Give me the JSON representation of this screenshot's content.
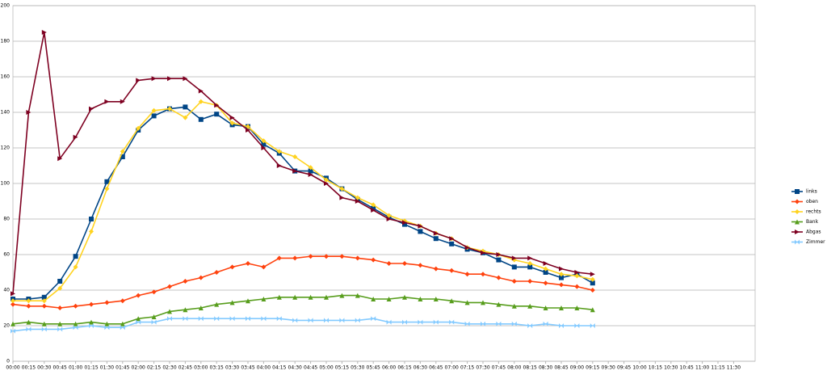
{
  "chart_data": {
    "type": "line",
    "categories": [
      "00:00",
      "00:15",
      "00:30",
      "00:45",
      "01:00",
      "01:15",
      "01:30",
      "01:45",
      "02:00",
      "02:15",
      "02:30",
      "02:45",
      "03:00",
      "03:15",
      "03:30",
      "03:45",
      "04:00",
      "04:15",
      "04:30",
      "04:45",
      "05:00",
      "05:15",
      "05:30",
      "05:45",
      "06:00",
      "06:15",
      "06:30",
      "06:45",
      "07:00",
      "07:15",
      "07:30",
      "07:45",
      "08:00",
      "08:15",
      "08:30",
      "08:45",
      "09:00",
      "09:15",
      "09:30",
      "09:45",
      "10:00",
      "10:15",
      "10:30",
      "10:45",
      "11:00",
      "11:15",
      "11:30"
    ],
    "ylim": [
      0,
      200
    ],
    "yticks": [
      0,
      20,
      40,
      60,
      80,
      100,
      120,
      140,
      160,
      180,
      200
    ],
    "grid": true,
    "legend": "right",
    "series": [
      {
        "name": "links",
        "color": "#004586",
        "marker": "square",
        "values": [
          35,
          35,
          36,
          45,
          59,
          80,
          101,
          115,
          130,
          138,
          142,
          143,
          136,
          139,
          133,
          132,
          122,
          117,
          107,
          107,
          103,
          97,
          91,
          86,
          81,
          77,
          73,
          69,
          66,
          63,
          61,
          57,
          53,
          53,
          50,
          47,
          49,
          44,
          null,
          null,
          null,
          null,
          null,
          null,
          null,
          null,
          null
        ]
      },
      {
        "name": "oben",
        "color": "#ff420e",
        "marker": "diamond",
        "values": [
          32,
          31,
          31,
          30,
          31,
          32,
          33,
          34,
          37,
          39,
          42,
          45,
          47,
          50,
          53,
          55,
          53,
          58,
          58,
          59,
          59,
          59,
          58,
          57,
          55,
          55,
          54,
          52,
          51,
          49,
          49,
          47,
          45,
          45,
          44,
          43,
          42,
          40,
          null,
          null,
          null,
          null,
          null,
          null,
          null,
          null,
          null
        ]
      },
      {
        "name": "rechts",
        "color": "#ffd320",
        "marker": "diamond",
        "values": [
          34,
          34,
          34,
          41,
          53,
          73,
          97,
          118,
          131,
          141,
          142,
          137,
          146,
          144,
          134,
          132,
          124,
          118,
          115,
          109,
          102,
          97,
          92,
          88,
          82,
          79,
          76,
          72,
          69,
          64,
          62,
          60,
          57,
          55,
          52,
          49,
          48,
          46,
          null,
          null,
          null,
          null,
          null,
          null,
          null,
          null,
          null
        ]
      },
      {
        "name": "Bank",
        "color": "#579d1c",
        "marker": "triangle",
        "values": [
          21,
          22,
          21,
          21,
          21,
          22,
          21,
          21,
          24,
          25,
          28,
          29,
          30,
          32,
          33,
          34,
          35,
          36,
          36,
          36,
          36,
          37,
          37,
          35,
          35,
          36,
          35,
          35,
          34,
          33,
          33,
          32,
          31,
          31,
          30,
          30,
          30,
          29,
          null,
          null,
          null,
          null,
          null,
          null,
          null,
          null,
          null
        ]
      },
      {
        "name": "Abgas",
        "color": "#7e0021",
        "marker": "arrow",
        "values": [
          38,
          140,
          185,
          114,
          126,
          142,
          146,
          146,
          158,
          159,
          159,
          159,
          152,
          144,
          137,
          130,
          120,
          110,
          107,
          105,
          100,
          92,
          90,
          85,
          80,
          78,
          76,
          72,
          69,
          64,
          61,
          60,
          58,
          58,
          55,
          52,
          50,
          49,
          null,
          null,
          null,
          null,
          null,
          null,
          null,
          null,
          null
        ]
      },
      {
        "name": "Zimmer",
        "color": "#83caff",
        "marker": "bowtie",
        "values": [
          17,
          18,
          18,
          18,
          19,
          20,
          19,
          19,
          22,
          22,
          24,
          24,
          24,
          24,
          24,
          24,
          24,
          24,
          23,
          23,
          23,
          23,
          23,
          24,
          22,
          22,
          22,
          22,
          22,
          21,
          21,
          21,
          21,
          20,
          21,
          20,
          20,
          20,
          null,
          null,
          null,
          null,
          null,
          null,
          null,
          null,
          null
        ]
      }
    ]
  }
}
